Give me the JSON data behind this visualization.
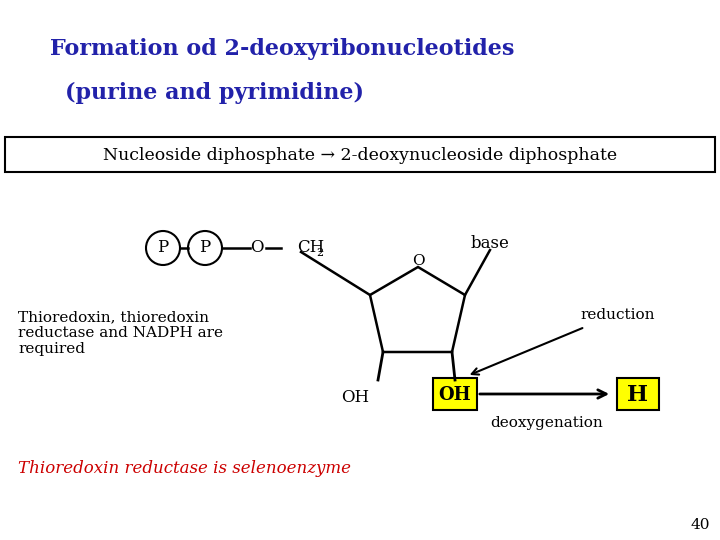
{
  "title_line1": "Formation od 2-deoxyribonucleotides",
  "title_line2": "(purine and pyrimidine)",
  "title_color": "#2222aa",
  "reaction_text": "Nucleoside diphosphate → 2-deoxynucleoside diphosphate",
  "reaction_text_color": "#000000",
  "thioredoxin_text": "Thioredoxin, thioredoxin\nreductase and NADPH are\nrequired",
  "thioredoxin_color": "#000000",
  "selenoenzyme_text": "Thioredoxin reductase is selenoenzyme",
  "selenoenzyme_color": "#cc0000",
  "reduction_label": "reduction",
  "deoxygenation_label": "deoxygenation",
  "page_number": "40",
  "bg_color": "#ffffff",
  "yellow_color": "#ffff00",
  "box_edge_color": "#000000"
}
